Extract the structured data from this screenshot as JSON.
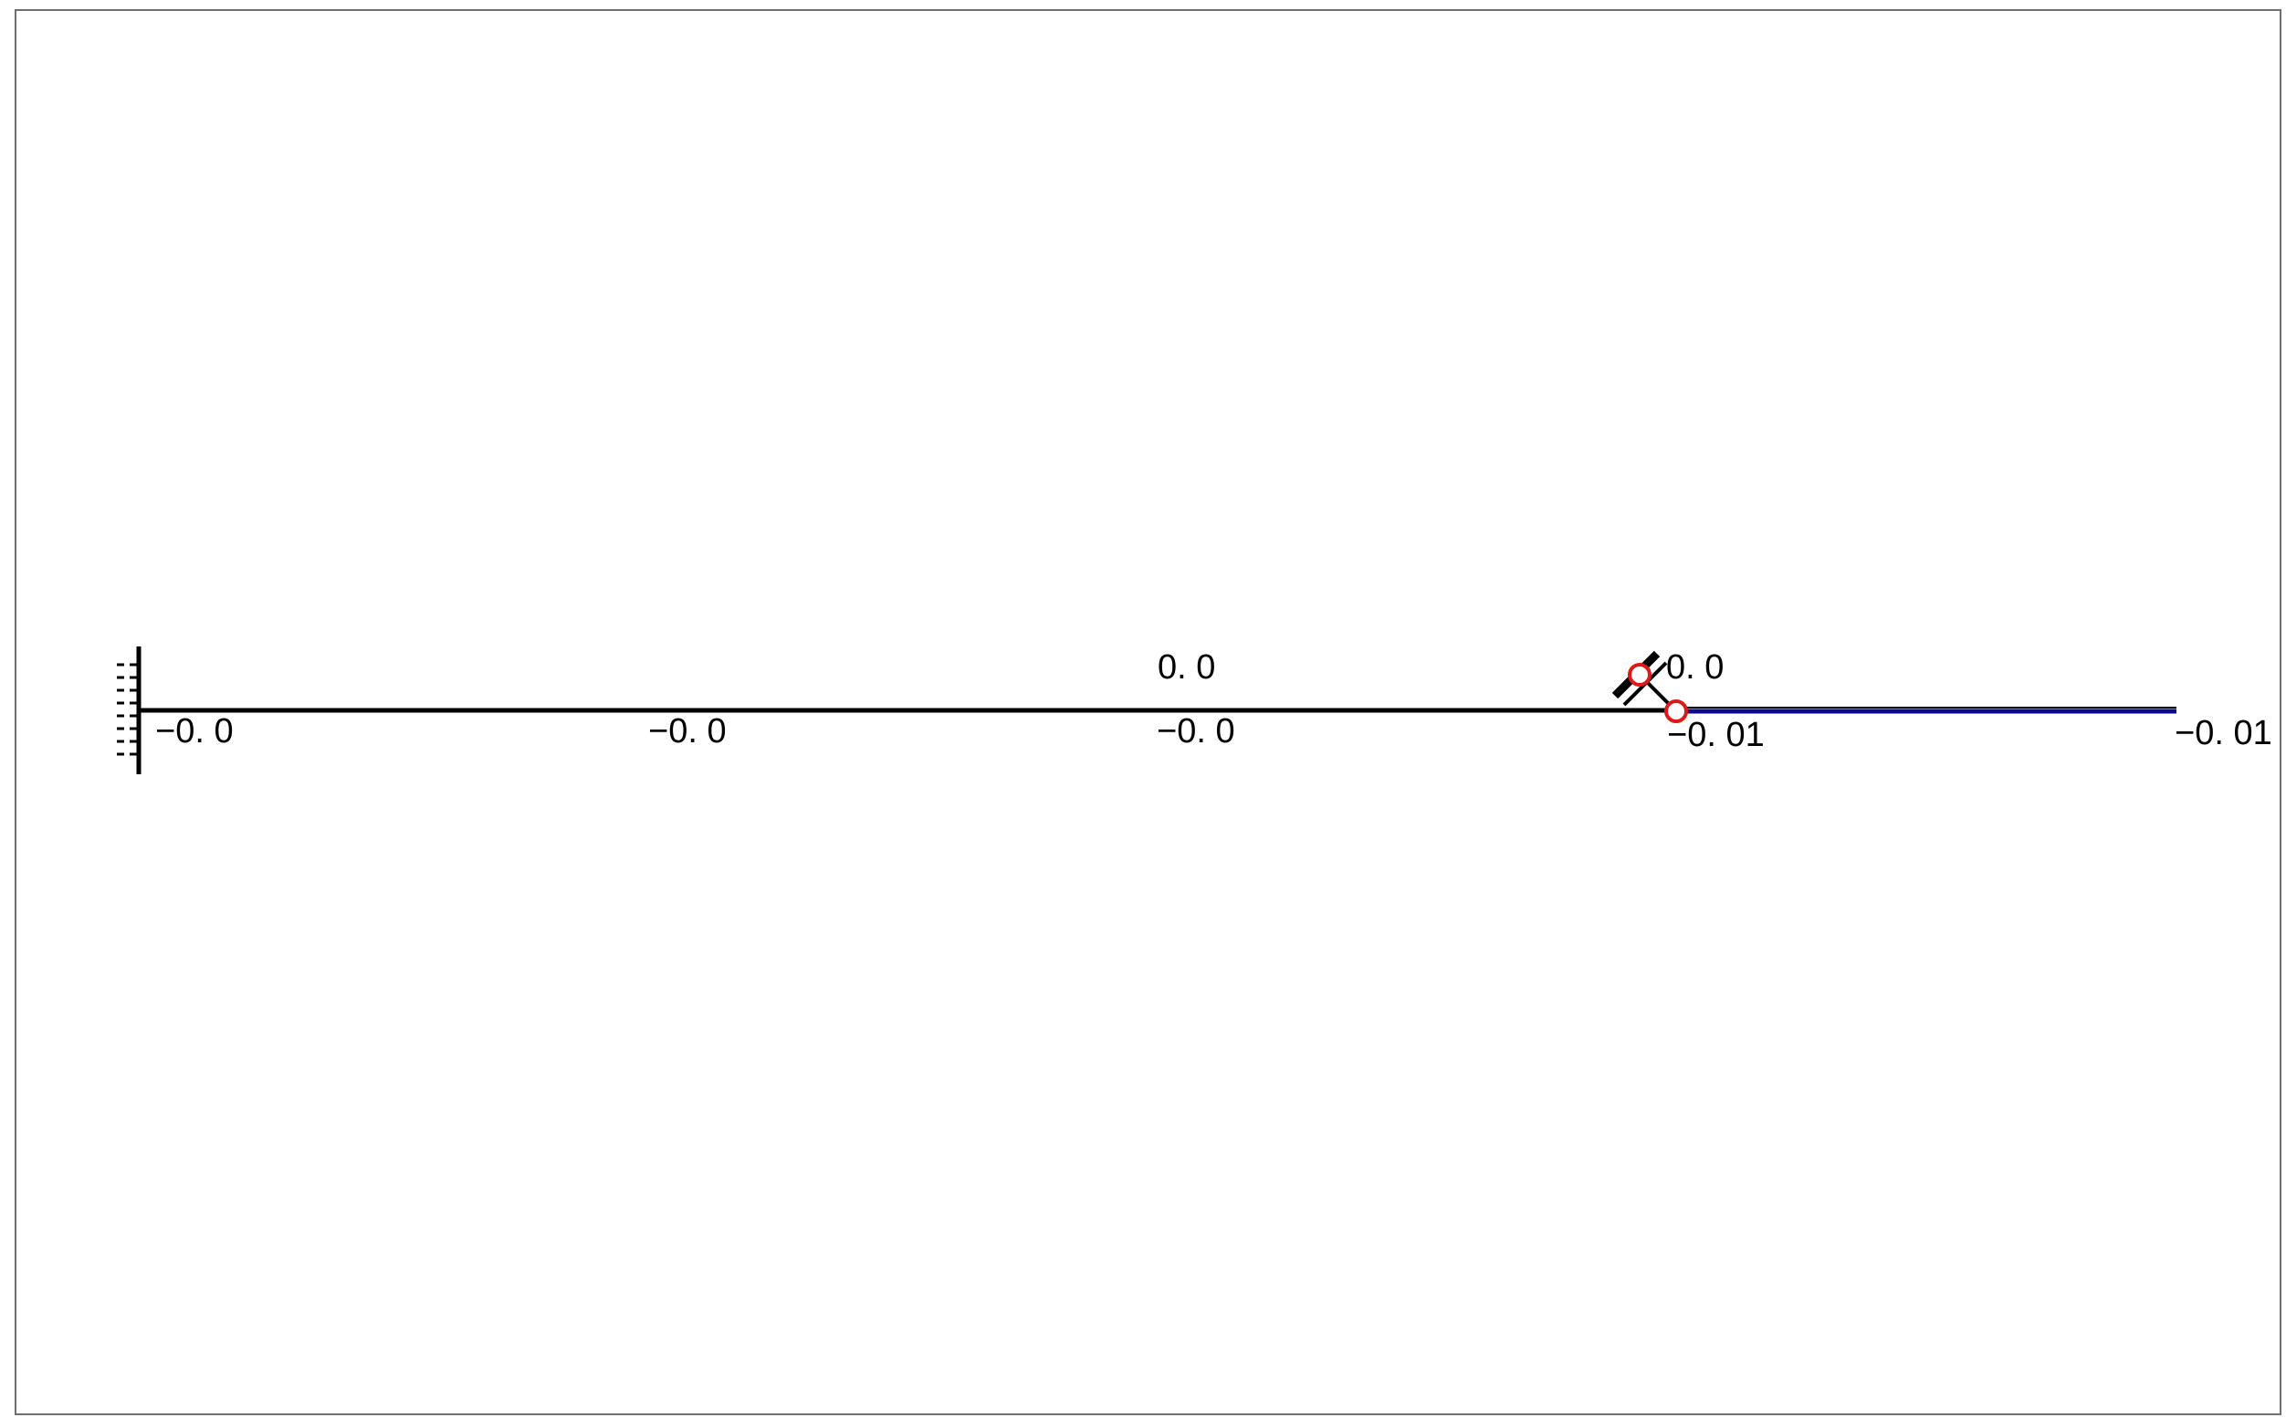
{
  "structure": {
    "members": [
      {
        "id": "main-beam",
        "color": "#000000"
      },
      {
        "id": "blue-segment",
        "color": "#0a0a8a"
      },
      {
        "id": "diagonal-link",
        "color": "#000000"
      }
    ],
    "nodes": [
      {
        "id": "upper-hinge",
        "color": "#e01818"
      },
      {
        "id": "lower-hinge",
        "color": "#e01818"
      }
    ],
    "supports": [
      {
        "id": "left-fixed-support",
        "type": "fixed"
      },
      {
        "id": "inclined-roller-support",
        "type": "roller"
      }
    ]
  },
  "labels": {
    "tick_0": "−0. 0",
    "tick_1": "−0. 0",
    "tick_2": "−0. 0",
    "tick_3": "−0. 01",
    "tick_4": "−0. 01",
    "upper_mid": "0. 0",
    "upper_right": "0. 0"
  },
  "colors": {
    "frame_border": "#6f6f6f",
    "background": "#ffffff",
    "beam": "#000000",
    "blue_segment": "#0a0a8a",
    "node": "#e01818"
  }
}
